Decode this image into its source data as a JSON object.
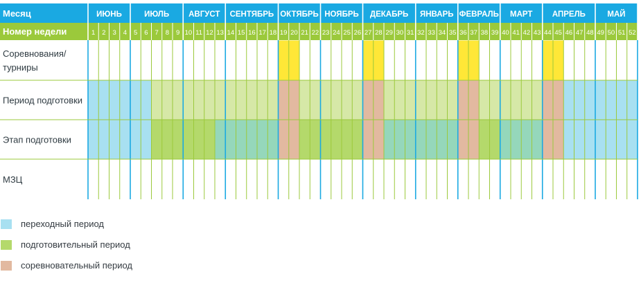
{
  "header": {
    "month_label": "Месяц",
    "week_label": "Номер недели",
    "months": [
      {
        "name": "ИЮНЬ",
        "start_week": 1,
        "end_week": 4
      },
      {
        "name": "ИЮЛЬ",
        "start_week": 5,
        "end_week": 9
      },
      {
        "name": "АВГУСТ",
        "start_week": 10,
        "end_week": 13
      },
      {
        "name": "СЕНТЯБРЬ",
        "start_week": 14,
        "end_week": 18
      },
      {
        "name": "ОКТЯБРЬ",
        "start_week": 19,
        "end_week": 22
      },
      {
        "name": "НОЯБРЬ",
        "start_week": 23,
        "end_week": 26
      },
      {
        "name": "ДЕКАБРЬ",
        "start_week": 27,
        "end_week": 31
      },
      {
        "name": "ЯНВАРЬ",
        "start_week": 32,
        "end_week": 35
      },
      {
        "name": "ФЕВРАЛЬ",
        "start_week": 36,
        "end_week": 39
      },
      {
        "name": "МАРТ",
        "start_week": 40,
        "end_week": 43
      },
      {
        "name": "АПРЕЛЬ",
        "start_week": 44,
        "end_week": 48
      },
      {
        "name": "МАЙ",
        "start_week": 49,
        "end_week": 52
      }
    ],
    "week_count": 52
  },
  "rows": [
    {
      "id": "competitions",
      "label": [
        "Соревнования/",
        "турниры"
      ]
    },
    {
      "id": "prep_period",
      "label": [
        "Период подготовки"
      ]
    },
    {
      "id": "prep_stage",
      "label": [
        "Этап подготовки"
      ]
    },
    {
      "id": "mzc",
      "label": [
        "МЗЦ"
      ]
    }
  ],
  "fills": {
    "competitions": [
      {
        "from": 19,
        "to": 20,
        "kind": "competition_event"
      },
      {
        "from": 27,
        "to": 28,
        "kind": "competition_event"
      },
      {
        "from": 36,
        "to": 37,
        "kind": "competition_event"
      },
      {
        "from": 44,
        "to": 45,
        "kind": "competition_event"
      }
    ],
    "prep_period": [
      {
        "from": 1,
        "to": 6,
        "kind": "transition"
      },
      {
        "from": 7,
        "to": 18,
        "kind": "prep_light"
      },
      {
        "from": 19,
        "to": 20,
        "kind": "competitive"
      },
      {
        "from": 21,
        "to": 26,
        "kind": "prep_light"
      },
      {
        "from": 27,
        "to": 28,
        "kind": "competitive"
      },
      {
        "from": 29,
        "to": 35,
        "kind": "prep_light"
      },
      {
        "from": 36,
        "to": 37,
        "kind": "competitive"
      },
      {
        "from": 38,
        "to": 43,
        "kind": "prep_light"
      },
      {
        "from": 44,
        "to": 45,
        "kind": "competitive"
      },
      {
        "from": 46,
        "to": 52,
        "kind": "transition"
      }
    ],
    "prep_stage": [
      {
        "from": 1,
        "to": 6,
        "kind": "transition"
      },
      {
        "from": 7,
        "to": 12,
        "kind": "preparatory"
      },
      {
        "from": 13,
        "to": 18,
        "kind": "teal"
      },
      {
        "from": 19,
        "to": 20,
        "kind": "competitive"
      },
      {
        "from": 21,
        "to": 26,
        "kind": "preparatory"
      },
      {
        "from": 27,
        "to": 28,
        "kind": "competitive"
      },
      {
        "from": 29,
        "to": 35,
        "kind": "teal"
      },
      {
        "from": 36,
        "to": 37,
        "kind": "competitive"
      },
      {
        "from": 38,
        "to": 39,
        "kind": "preparatory"
      },
      {
        "from": 40,
        "to": 43,
        "kind": "teal"
      },
      {
        "from": 44,
        "to": 45,
        "kind": "competitive"
      },
      {
        "from": 46,
        "to": 52,
        "kind": "transition"
      }
    ],
    "mzc": []
  },
  "colors": {
    "header_blue": "#1aa9e2",
    "header_green": "#9bc93b",
    "grid_green": "#9bc93b",
    "month_divider": "#1aa9e2",
    "competition_event": "#ffe737",
    "transition": "#a8e0f1",
    "prep_light": "#d6e8a7",
    "preparatory": "#b4d96b",
    "teal": "#95d7bb",
    "competitive": "#e2b9a0"
  },
  "legend": [
    {
      "label": "переходный период",
      "color": "#a8e0f1"
    },
    {
      "label": "подготовительный период",
      "color": "#b4d96b"
    },
    {
      "label": "соревновательный период",
      "color": "#e2b9a0"
    }
  ]
}
